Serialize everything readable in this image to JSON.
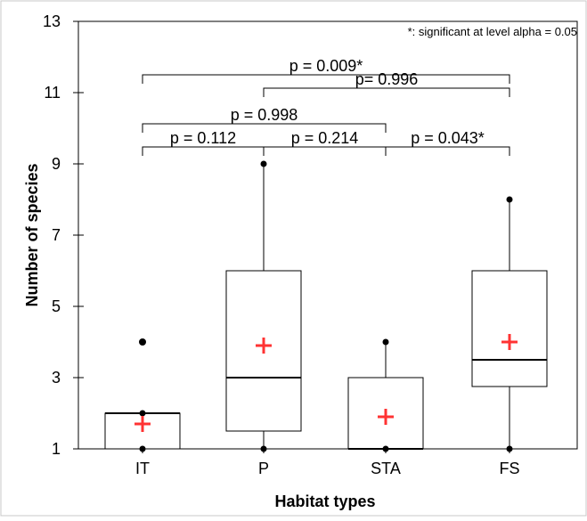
{
  "chart_data": {
    "type": "boxplot",
    "xlabel": "Habitat types",
    "ylabel": "Number of species",
    "ylim": [
      1,
      13
    ],
    "yticks": [
      1,
      3,
      5,
      7,
      9,
      11,
      13
    ],
    "grid": false,
    "note": "*: significant at level alpha = 0.05",
    "colors": {
      "box": "#000000",
      "mean": "#ff3333"
    },
    "categories": [
      "IT",
      "P",
      "STA",
      "FS"
    ],
    "boxes": [
      {
        "category": "IT",
        "min": 1,
        "q1": 1,
        "median": 2,
        "q3": 2,
        "max": 2,
        "mean": 1.7,
        "outliers": [
          4
        ]
      },
      {
        "category": "P",
        "min": 1,
        "q1": 1.5,
        "median": 3,
        "q3": 6,
        "max": 9,
        "mean": 3.9,
        "outliers": []
      },
      {
        "category": "STA",
        "min": 1,
        "q1": 1,
        "median": 1,
        "q3": 3,
        "max": 4,
        "mean": 1.9,
        "outliers": []
      },
      {
        "category": "FS",
        "min": 1,
        "q1": 2.75,
        "median": 3.5,
        "q3": 6,
        "max": 8,
        "mean": 4.0,
        "outliers": []
      }
    ],
    "comparisons": [
      {
        "from": "IT",
        "to": "P",
        "label": "p = 0.112",
        "tier": 0
      },
      {
        "from": "P",
        "to": "STA",
        "label": "p = 0.214",
        "tier": 0
      },
      {
        "from": "STA",
        "to": "FS",
        "label": "p = 0.043*",
        "tier": 0
      },
      {
        "from": "IT",
        "to": "STA",
        "label": "p = 0.998",
        "tier": 1
      },
      {
        "from": "P",
        "to": "FS",
        "label": "p= 0.996",
        "tier": 2
      },
      {
        "from": "IT",
        "to": "FS",
        "label": "p = 0.009*",
        "tier": 3
      }
    ]
  }
}
